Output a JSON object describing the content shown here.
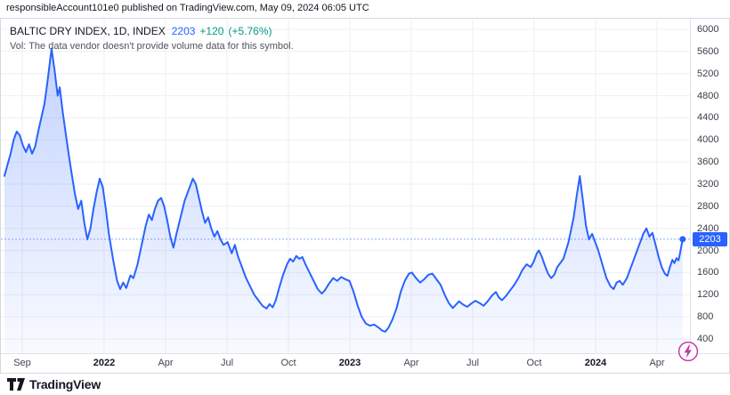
{
  "attribution": {
    "text": "responsibleAccount101e0 published on TradingView.com, May 09, 2024 06:05 UTC"
  },
  "legend": {
    "symbol_title": "BALTIC DRY INDEX, 1D, INDEX",
    "last_price": "2203",
    "change": "+120",
    "change_percent": "(+5.76%)",
    "vol_note": "Vol: The data vendor doesn't provide volume data for this symbol."
  },
  "price_axis": {
    "badge_value": "2203"
  },
  "footer": {
    "brand": "TradingView"
  },
  "colors": {
    "line": "#2962FF",
    "gain": "#089981",
    "badge": "#2962FF",
    "lightning": "#c837ab"
  },
  "chart_data": {
    "type": "area",
    "title": "BALTIC DRY INDEX, 1D, INDEX",
    "xlabel": "",
    "ylabel": "",
    "x_unit": "months since 2021-08-05",
    "line_color": "#2962FF",
    "grid": true,
    "legend_position": "none",
    "ylim": [
      142,
      6193
    ],
    "last_value": 2203,
    "y_ticks": [
      400,
      800,
      1200,
      1600,
      2000,
      2400,
      2800,
      3200,
      3600,
      4000,
      4400,
      4800,
      5200,
      5600,
      6000
    ],
    "x_ticks": [
      {
        "label": "Sep",
        "t": 0.87,
        "bold": false
      },
      {
        "label": "2022",
        "t": 4.87,
        "bold": true
      },
      {
        "label": "Apr",
        "t": 7.87,
        "bold": false
      },
      {
        "label": "Jul",
        "t": 10.87,
        "bold": false
      },
      {
        "label": "Oct",
        "t": 13.87,
        "bold": false
      },
      {
        "label": "2023",
        "t": 16.87,
        "bold": true
      },
      {
        "label": "Apr",
        "t": 19.87,
        "bold": false
      },
      {
        "label": "Jul",
        "t": 22.87,
        "bold": false
      },
      {
        "label": "Oct",
        "t": 25.87,
        "bold": false
      },
      {
        "label": "2024",
        "t": 28.87,
        "bold": true
      },
      {
        "label": "Apr",
        "t": 31.87,
        "bold": false
      }
    ],
    "points": [
      [
        0.0,
        3350
      ],
      [
        0.15,
        3550
      ],
      [
        0.3,
        3750
      ],
      [
        0.45,
        4000
      ],
      [
        0.6,
        4150
      ],
      [
        0.75,
        4080
      ],
      [
        0.9,
        3900
      ],
      [
        1.05,
        3780
      ],
      [
        1.2,
        3920
      ],
      [
        1.35,
        3750
      ],
      [
        1.5,
        3880
      ],
      [
        1.65,
        4150
      ],
      [
        1.8,
        4400
      ],
      [
        1.95,
        4650
      ],
      [
        2.1,
        5050
      ],
      [
        2.2,
        5350
      ],
      [
        2.3,
        5650
      ],
      [
        2.45,
        5250
      ],
      [
        2.6,
        4800
      ],
      [
        2.7,
        4950
      ],
      [
        2.85,
        4500
      ],
      [
        3.0,
        4100
      ],
      [
        3.15,
        3700
      ],
      [
        3.3,
        3350
      ],
      [
        3.45,
        3000
      ],
      [
        3.6,
        2750
      ],
      [
        3.75,
        2900
      ],
      [
        3.9,
        2500
      ],
      [
        4.05,
        2200
      ],
      [
        4.2,
        2400
      ],
      [
        4.35,
        2750
      ],
      [
        4.5,
        3050
      ],
      [
        4.65,
        3300
      ],
      [
        4.8,
        3150
      ],
      [
        4.95,
        2750
      ],
      [
        5.1,
        2300
      ],
      [
        5.3,
        1850
      ],
      [
        5.5,
        1450
      ],
      [
        5.65,
        1300
      ],
      [
        5.8,
        1420
      ],
      [
        5.95,
        1320
      ],
      [
        6.15,
        1550
      ],
      [
        6.3,
        1500
      ],
      [
        6.5,
        1750
      ],
      [
        6.7,
        2100
      ],
      [
        6.9,
        2450
      ],
      [
        7.05,
        2650
      ],
      [
        7.2,
        2550
      ],
      [
        7.35,
        2750
      ],
      [
        7.5,
        2900
      ],
      [
        7.65,
        2950
      ],
      [
        7.8,
        2800
      ],
      [
        7.95,
        2550
      ],
      [
        8.1,
        2250
      ],
      [
        8.25,
        2050
      ],
      [
        8.4,
        2300
      ],
      [
        8.6,
        2600
      ],
      [
        8.8,
        2900
      ],
      [
        9.0,
        3100
      ],
      [
        9.2,
        3300
      ],
      [
        9.35,
        3200
      ],
      [
        9.5,
        2950
      ],
      [
        9.65,
        2700
      ],
      [
        9.8,
        2500
      ],
      [
        9.95,
        2600
      ],
      [
        10.1,
        2400
      ],
      [
        10.25,
        2250
      ],
      [
        10.4,
        2350
      ],
      [
        10.55,
        2200
      ],
      [
        10.7,
        2100
      ],
      [
        10.9,
        2150
      ],
      [
        11.1,
        1950
      ],
      [
        11.25,
        2100
      ],
      [
        11.4,
        1900
      ],
      [
        11.6,
        1700
      ],
      [
        11.8,
        1500
      ],
      [
        12.0,
        1350
      ],
      [
        12.2,
        1200
      ],
      [
        12.4,
        1100
      ],
      [
        12.6,
        1000
      ],
      [
        12.8,
        950
      ],
      [
        12.95,
        1030
      ],
      [
        13.1,
        970
      ],
      [
        13.25,
        1100
      ],
      [
        13.4,
        1300
      ],
      [
        13.6,
        1550
      ],
      [
        13.8,
        1750
      ],
      [
        13.95,
        1850
      ],
      [
        14.1,
        1800
      ],
      [
        14.25,
        1900
      ],
      [
        14.4,
        1850
      ],
      [
        14.55,
        1880
      ],
      [
        14.7,
        1750
      ],
      [
        14.9,
        1600
      ],
      [
        15.1,
        1450
      ],
      [
        15.3,
        1300
      ],
      [
        15.5,
        1220
      ],
      [
        15.65,
        1280
      ],
      [
        15.85,
        1400
      ],
      [
        16.05,
        1500
      ],
      [
        16.25,
        1450
      ],
      [
        16.45,
        1520
      ],
      [
        16.65,
        1480
      ],
      [
        16.85,
        1450
      ],
      [
        17.05,
        1250
      ],
      [
        17.25,
        1000
      ],
      [
        17.45,
        800
      ],
      [
        17.65,
        680
      ],
      [
        17.85,
        640
      ],
      [
        18.05,
        660
      ],
      [
        18.25,
        610
      ],
      [
        18.45,
        550
      ],
      [
        18.6,
        530
      ],
      [
        18.75,
        600
      ],
      [
        18.95,
        750
      ],
      [
        19.15,
        950
      ],
      [
        19.35,
        1250
      ],
      [
        19.55,
        1450
      ],
      [
        19.75,
        1580
      ],
      [
        19.9,
        1600
      ],
      [
        20.1,
        1500
      ],
      [
        20.3,
        1420
      ],
      [
        20.5,
        1480
      ],
      [
        20.7,
        1560
      ],
      [
        20.9,
        1580
      ],
      [
        21.1,
        1480
      ],
      [
        21.3,
        1380
      ],
      [
        21.5,
        1200
      ],
      [
        21.7,
        1050
      ],
      [
        21.9,
        960
      ],
      [
        22.05,
        1020
      ],
      [
        22.2,
        1080
      ],
      [
        22.4,
        1020
      ],
      [
        22.6,
        980
      ],
      [
        22.8,
        1040
      ],
      [
        23.0,
        1090
      ],
      [
        23.2,
        1050
      ],
      [
        23.4,
        1000
      ],
      [
        23.6,
        1080
      ],
      [
        23.8,
        1180
      ],
      [
        24.0,
        1250
      ],
      [
        24.15,
        1150
      ],
      [
        24.3,
        1100
      ],
      [
        24.5,
        1180
      ],
      [
        24.7,
        1280
      ],
      [
        24.9,
        1380
      ],
      [
        25.1,
        1500
      ],
      [
        25.3,
        1650
      ],
      [
        25.5,
        1750
      ],
      [
        25.7,
        1700
      ],
      [
        25.85,
        1800
      ],
      [
        26.0,
        1950
      ],
      [
        26.1,
        2000
      ],
      [
        26.25,
        1880
      ],
      [
        26.4,
        1720
      ],
      [
        26.55,
        1580
      ],
      [
        26.7,
        1500
      ],
      [
        26.85,
        1560
      ],
      [
        27.0,
        1700
      ],
      [
        27.3,
        1850
      ],
      [
        27.55,
        2150
      ],
      [
        27.8,
        2600
      ],
      [
        27.95,
        3000
      ],
      [
        28.1,
        3346
      ],
      [
        28.25,
        2900
      ],
      [
        28.4,
        2450
      ],
      [
        28.55,
        2200
      ],
      [
        28.7,
        2300
      ],
      [
        28.85,
        2150
      ],
      [
        29.0,
        2000
      ],
      [
        29.2,
        1750
      ],
      [
        29.4,
        1500
      ],
      [
        29.6,
        1350
      ],
      [
        29.75,
        1300
      ],
      [
        29.9,
        1420
      ],
      [
        30.05,
        1450
      ],
      [
        30.2,
        1380
      ],
      [
        30.4,
        1500
      ],
      [
        30.6,
        1700
      ],
      [
        30.8,
        1900
      ],
      [
        31.0,
        2100
      ],
      [
        31.2,
        2300
      ],
      [
        31.35,
        2400
      ],
      [
        31.5,
        2250
      ],
      [
        31.65,
        2320
      ],
      [
        31.8,
        2100
      ],
      [
        31.95,
        1880
      ],
      [
        32.1,
        1700
      ],
      [
        32.25,
        1580
      ],
      [
        32.38,
        1540
      ],
      [
        32.5,
        1700
      ],
      [
        32.62,
        1830
      ],
      [
        32.72,
        1770
      ],
      [
        32.82,
        1860
      ],
      [
        32.92,
        1820
      ],
      [
        33.0,
        1960
      ],
      [
        33.06,
        2083
      ],
      [
        33.12,
        2203
      ]
    ]
  }
}
